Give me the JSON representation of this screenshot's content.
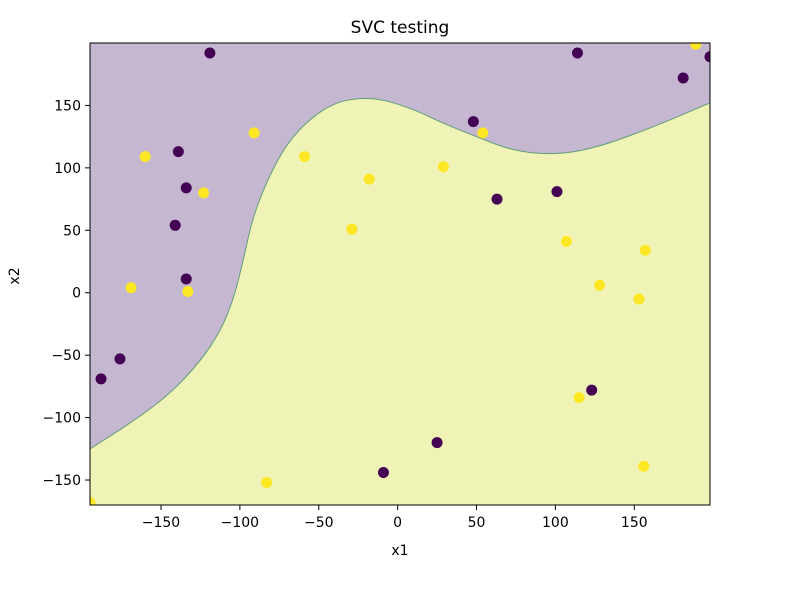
{
  "chart_data": {
    "type": "scatter",
    "title": "SVC testing",
    "xlabel": "x1",
    "ylabel": "x2",
    "xlim": [
      -195,
      198
    ],
    "ylim": [
      -170,
      200
    ],
    "xticks": [
      -150,
      -100,
      -50,
      0,
      50,
      100,
      150
    ],
    "yticks": [
      -150,
      -100,
      -50,
      0,
      50,
      100,
      150
    ],
    "xtick_labels": [
      "−150",
      "−100",
      "−50",
      "0",
      "50",
      "100",
      "150"
    ],
    "ytick_labels": [
      "−150",
      "−100",
      "−50",
      "0",
      "50",
      "100",
      "150"
    ],
    "grid": false,
    "legend": "none",
    "regions": {
      "class_0_color": "#c6b7d1",
      "class_1_color": "#eff3b6",
      "boundary_color": "#5f9e7a",
      "boundary_points": [
        [
          -195,
          -125
        ],
        [
          -170,
          -105
        ],
        [
          -145,
          -82
        ],
        [
          -125,
          -55
        ],
        [
          -112,
          -30
        ],
        [
          -104,
          -5
        ],
        [
          -98,
          25
        ],
        [
          -92,
          60
        ],
        [
          -82,
          92
        ],
        [
          -70,
          120
        ],
        [
          -55,
          140
        ],
        [
          -40,
          152
        ],
        [
          -25,
          156
        ],
        [
          -10,
          155
        ],
        [
          10,
          147
        ],
        [
          30,
          135
        ],
        [
          50,
          125
        ],
        [
          70,
          115
        ],
        [
          90,
          111
        ],
        [
          110,
          112
        ],
        [
          130,
          118
        ],
        [
          150,
          127
        ],
        [
          170,
          137
        ],
        [
          185,
          145
        ],
        [
          198,
          152
        ]
      ]
    },
    "series": [
      {
        "class": 0,
        "color": "#440154",
        "points": [
          [
            -119,
            192
          ],
          [
            114,
            192
          ],
          [
            -139,
            113
          ],
          [
            -134,
            84
          ],
          [
            -141,
            54
          ],
          [
            -134,
            11
          ],
          [
            -176,
            -53
          ],
          [
            -188,
            -69
          ],
          [
            48,
            137
          ],
          [
            63,
            75
          ],
          [
            101,
            81
          ],
          [
            181,
            172
          ],
          [
            198,
            189
          ],
          [
            123,
            -78
          ],
          [
            25,
            -120
          ],
          [
            -9,
            -144
          ]
        ]
      },
      {
        "class": 1,
        "color": "#fde725",
        "points": [
          [
            189,
            199
          ],
          [
            -160,
            109
          ],
          [
            -91,
            128
          ],
          [
            -59,
            109
          ],
          [
            -123,
            80
          ],
          [
            -18,
            91
          ],
          [
            29,
            101
          ],
          [
            54,
            128
          ],
          [
            -29,
            51
          ],
          [
            -169,
            4
          ],
          [
            -133,
            1
          ],
          [
            107,
            41
          ],
          [
            157,
            34
          ],
          [
            128,
            6
          ],
          [
            153,
            -5
          ],
          [
            115,
            -84
          ],
          [
            156,
            -139
          ],
          [
            -83,
            -152
          ],
          [
            -195,
            -168
          ]
        ]
      }
    ]
  }
}
